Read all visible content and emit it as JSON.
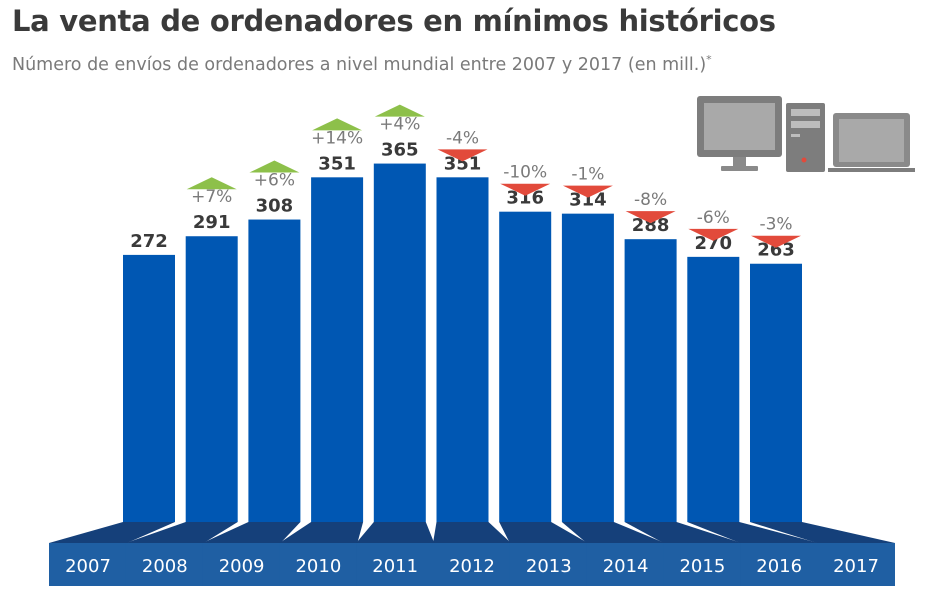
{
  "title": "La venta de ordenadores en mínimos históricos",
  "subtitle": "Número de envíos de ordenadores a nivel mundial entre 2007 y 2017 (en mill.)",
  "subtitle_note": "*",
  "colors": {
    "bar": "#0057b3",
    "base": "#1f5fa3",
    "base_top": "#15407a",
    "up": "#8dc04a",
    "down": "#e24a3b",
    "value_text": "#3a3a3a",
    "change_text": "#7a7a7a",
    "icon": "#7d7d7d"
  },
  "icons": [
    "desktop-monitor-icon",
    "tower-pc-icon",
    "laptop-icon"
  ],
  "chart_data": {
    "type": "bar",
    "categories": [
      "2007",
      "2008",
      "2009",
      "2010",
      "2011",
      "2012",
      "2013",
      "2014",
      "2015",
      "2016",
      "2017"
    ],
    "values": [
      272,
      291,
      308,
      351,
      365,
      351,
      316,
      314,
      288,
      270,
      263
    ],
    "value_labels": [
      "272",
      "291",
      "308",
      "351",
      "365",
      "351",
      "316",
      "314",
      "288",
      "270",
      "263"
    ],
    "changes": [
      "+7%",
      "+6%",
      "+14%",
      "+4%",
      "-4%",
      "-10%",
      "-1%",
      "-8%",
      "-6%",
      "-3%"
    ],
    "change_direction": [
      "up",
      "up",
      "up",
      "up",
      "down",
      "down",
      "down",
      "down",
      "down",
      "down"
    ],
    "title": "La venta de ordenadores en mínimos históricos",
    "xlabel": "",
    "ylabel": "",
    "ylim": [
      0,
      380
    ],
    "grid": false,
    "legend": "none"
  }
}
